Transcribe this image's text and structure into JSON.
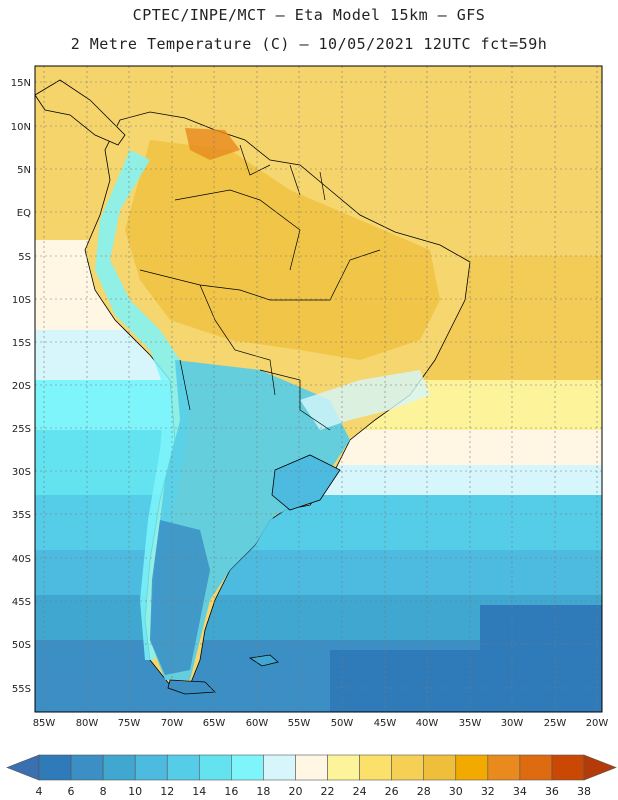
{
  "header": {
    "line1": "CPTEC/INPE/MCT –  Eta Model 15km – GFS",
    "line2": "2 Metre Temperature (C) – 10/05/2021 12UTC fct=59h"
  },
  "axes": {
    "lat_labels": [
      "15N",
      "10N",
      "5N",
      "EQ",
      "5S",
      "10S",
      "15S",
      "20S",
      "25S",
      "30S",
      "35S",
      "40S",
      "45S",
      "50S",
      "55S"
    ],
    "lon_labels": [
      "85W",
      "80W",
      "75W",
      "70W",
      "65W",
      "60W",
      "55W",
      "50W",
      "45W",
      "40W",
      "35W",
      "30W",
      "25W",
      "20W"
    ]
  },
  "colorbar": {
    "levels": [
      "4",
      "6",
      "8",
      "10",
      "12",
      "14",
      "16",
      "18",
      "20",
      "22",
      "24",
      "26",
      "28",
      "30",
      "32",
      "34",
      "36",
      "38"
    ],
    "colors": [
      "#3a6fb0",
      "#2f7ab8",
      "#3b8fc4",
      "#40a8d0",
      "#4dbbe0",
      "#55cde8",
      "#63e2f0",
      "#7ef5fa",
      "#d6f6fb",
      "#fff7e3",
      "#fdf39a",
      "#fbe06a",
      "#f5d055",
      "#efbf3c",
      "#f2a900",
      "#e88a1e",
      "#de6b0f",
      "#c84804",
      "#b53a0a"
    ]
  },
  "colors": {
    "land_outline": "#000000",
    "grid": "#7a7a7a",
    "frame": "#000000"
  }
}
